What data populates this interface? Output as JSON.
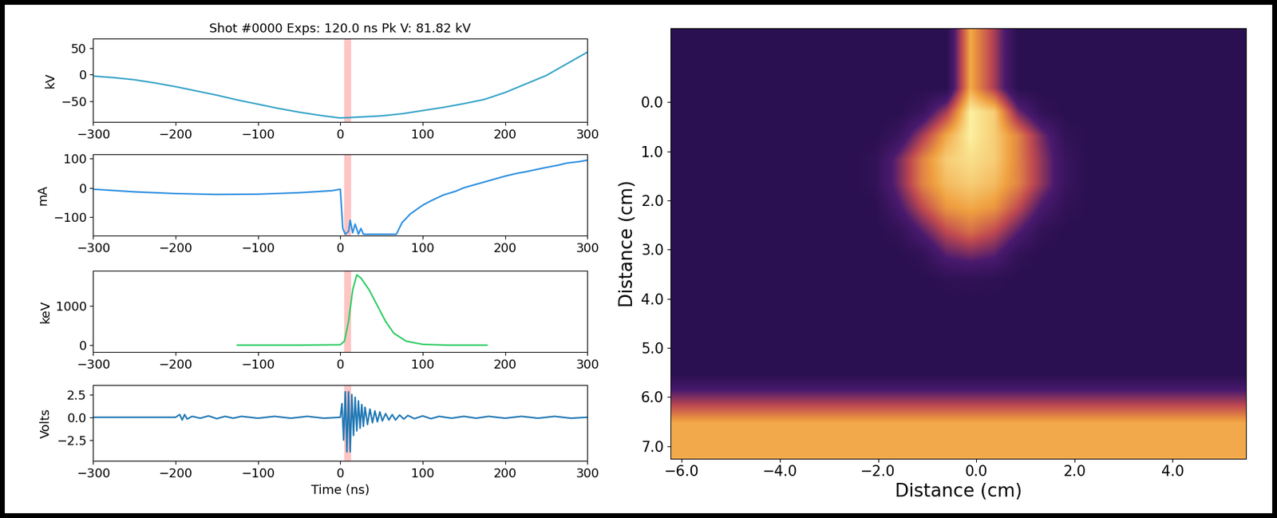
{
  "chart_data": [
    {
      "type": "line",
      "title": "Shot #0000 Exps: 120.0 ns Pk V: 81.82 kV",
      "y_label": "kV",
      "xlim": [
        -300,
        300
      ],
      "xticks": [
        {
          "value": -300,
          "label": "−300"
        },
        {
          "value": -200,
          "label": "−200"
        },
        {
          "value": -100,
          "label": "−100"
        },
        0,
        100,
        200,
        300
      ],
      "ylim": [
        -90,
        68
      ],
      "yticks": [
        {
          "value": -50,
          "label": "−50"
        },
        0,
        50
      ],
      "highlight": [
        5,
        13
      ],
      "series": [
        {
          "color": "#37a3c8",
          "x": [
            -300,
            -275,
            -250,
            -225,
            -200,
            -175,
            -150,
            -125,
            -100,
            -75,
            -50,
            -25,
            0,
            25,
            50,
            75,
            100,
            125,
            150,
            175,
            200,
            225,
            250,
            275,
            300
          ],
          "values": [
            -3,
            -6,
            -10,
            -16,
            -23,
            -31,
            -39,
            -48,
            -56,
            -64,
            -71,
            -77,
            -82,
            -80,
            -78,
            -74,
            -68,
            -62,
            -55,
            -47,
            -34,
            -18,
            -2,
            20,
            42
          ]
        }
      ]
    },
    {
      "type": "line",
      "y_label": "mA",
      "xlim": [
        -300,
        300
      ],
      "xticks": [
        {
          "value": -300,
          "label": "−300"
        },
        {
          "value": -200,
          "label": "−200"
        },
        {
          "value": -100,
          "label": "−100"
        },
        0,
        100,
        200,
        300
      ],
      "ylim": [
        -165,
        115
      ],
      "yticks": [
        {
          "value": -100,
          "label": "−100"
        },
        0,
        100
      ],
      "highlight": [
        5,
        13
      ],
      "series": [
        {
          "color": "#2b8ee0",
          "x": [
            -300,
            -250,
            -200,
            -150,
            -100,
            -50,
            -10,
            0,
            3,
            6,
            10,
            12,
            15,
            18,
            22,
            25,
            28,
            30,
            68,
            75,
            85,
            100,
            110,
            125,
            140,
            150,
            165,
            175,
            190,
            200,
            215,
            225,
            240,
            250,
            265,
            275,
            290,
            300
          ],
          "values": [
            -5,
            -14,
            -20,
            -23,
            -22,
            -17,
            -10,
            -5,
            -140,
            -160,
            -150,
            -112,
            -155,
            -125,
            -160,
            -140,
            -160,
            -160,
            -160,
            -120,
            -90,
            -60,
            -45,
            -25,
            -12,
            0,
            12,
            20,
            32,
            40,
            50,
            55,
            64,
            70,
            78,
            85,
            90,
            95
          ]
        }
      ]
    },
    {
      "type": "line",
      "y_label": "keV",
      "xlim": [
        -300,
        300
      ],
      "xticks": [
        {
          "value": -300,
          "label": "−300"
        },
        {
          "value": -200,
          "label": "−200"
        },
        {
          "value": -100,
          "label": "−100"
        },
        0,
        100,
        200,
        300
      ],
      "ylim": [
        -180,
        1880
      ],
      "yticks": [
        0,
        1000
      ],
      "highlight": [
        5,
        13
      ],
      "series": [
        {
          "color": "#2ecc62",
          "x": [
            -125,
            -50,
            0,
            5,
            10,
            15,
            20,
            25,
            35,
            45,
            55,
            65,
            80,
            100,
            130,
            178
          ],
          "values": [
            0,
            0,
            10,
            100,
            600,
            1400,
            1780,
            1700,
            1400,
            1000,
            600,
            300,
            100,
            20,
            0,
            0
          ]
        }
      ]
    },
    {
      "type": "line",
      "y_label": "Volts",
      "x_label": "Time (ns)",
      "xlim": [
        -300,
        300
      ],
      "xticks": [
        {
          "value": -300,
          "label": "−300"
        },
        {
          "value": -200,
          "label": "−200"
        },
        {
          "value": -100,
          "label": "−100"
        },
        0,
        100,
        200,
        300
      ],
      "ylim": [
        -4.8,
        3.5
      ],
      "yticks": [
        {
          "value": -2.5,
          "label": "−2.5"
        },
        {
          "value": 0,
          "label": "0.0"
        },
        2.5
      ],
      "highlight": [
        5,
        13
      ],
      "series": [
        {
          "color": "#1f77b4",
          "x": [
            -300,
            -200,
            -195,
            -192,
            -189,
            -186,
            -180,
            -170,
            -160,
            -150,
            -140,
            -130,
            -120,
            -100,
            -80,
            -60,
            -40,
            -20,
            0,
            2,
            4,
            6,
            8,
            10,
            12,
            14,
            16,
            18,
            20,
            22,
            24,
            26,
            28,
            30,
            33,
            36,
            39,
            42,
            45,
            48,
            51,
            55,
            59,
            63,
            67,
            72,
            77,
            82,
            90,
            100,
            110,
            120,
            135,
            150,
            165,
            180,
            200,
            220,
            240,
            260,
            280,
            300
          ],
          "values": [
            0,
            0,
            0.3,
            -0.3,
            0.3,
            -0.2,
            0.1,
            -0.1,
            0.15,
            -0.15,
            0.1,
            -0.1,
            0.1,
            -0.1,
            0.1,
            -0.1,
            0.1,
            -0.1,
            0,
            1.5,
            -2.5,
            2.8,
            -3.8,
            2.8,
            -3.8,
            2.5,
            -2.0,
            2.2,
            -1.5,
            1.8,
            -1.2,
            1.4,
            -1.0,
            1.1,
            -0.8,
            0.9,
            -0.6,
            0.7,
            -0.5,
            0.6,
            -0.4,
            0.4,
            -0.3,
            0.3,
            -0.3,
            0.25,
            -0.2,
            0.2,
            -0.15,
            0.15,
            -0.15,
            0.1,
            -0.1,
            0.1,
            -0.1,
            0.1,
            -0.1,
            0.1,
            -0.1,
            0.1,
            -0.1,
            0
          ]
        }
      ]
    },
    {
      "type": "heatmap",
      "x_label": "Distance (cm)",
      "y_label": "Distance (cm)",
      "xlim": [
        -6.23,
        5.5
      ],
      "ylim": [
        7.25,
        -1.5
      ],
      "xticks": [
        {
          "value": -6,
          "label": "−6.0"
        },
        {
          "value": -4,
          "label": "−4.0"
        },
        {
          "value": -2,
          "label": "−2.0"
        },
        {
          "value": 0,
          "label": "0.0"
        },
        {
          "value": 2,
          "label": "2.0"
        },
        {
          "value": 4,
          "label": "4.0"
        }
      ],
      "yticks": [
        {
          "value": 0,
          "label": "0.0"
        },
        {
          "value": 1,
          "label": "1.0"
        },
        {
          "value": 2,
          "label": "2.0"
        },
        {
          "value": 3,
          "label": "3.0"
        },
        {
          "value": 4,
          "label": "4.0"
        },
        {
          "value": 5,
          "label": "5.0"
        },
        {
          "value": 6,
          "label": "6.0"
        },
        {
          "value": 7,
          "label": "7.0"
        }
      ],
      "cells": [
        [
          0,
          0,
          0,
          0,
          0,
          0,
          0,
          0,
          0,
          0,
          0,
          0,
          7,
          4,
          0,
          0,
          0,
          0,
          0,
          0,
          0,
          0,
          0,
          0
        ],
        [
          0,
          0,
          0,
          0,
          0,
          0,
          0,
          0,
          0,
          0,
          0,
          0,
          7,
          4,
          0,
          0,
          0,
          0,
          0,
          0,
          0,
          0,
          0,
          0
        ],
        [
          0,
          0,
          0,
          0,
          0,
          0,
          0,
          0,
          0,
          0,
          0,
          0,
          7,
          4,
          0,
          0,
          0,
          0,
          0,
          0,
          0,
          0,
          0,
          0
        ],
        [
          0,
          0,
          0,
          0,
          0,
          0,
          0,
          0,
          0,
          0,
          1,
          4,
          9,
          8,
          3,
          0.5,
          0,
          0,
          0,
          0,
          0,
          0,
          0,
          0
        ],
        [
          0,
          0,
          0,
          0,
          0,
          0,
          0,
          0,
          0,
          1,
          4,
          7,
          9,
          8,
          6,
          3,
          0.5,
          0,
          0,
          0,
          0,
          0,
          0,
          0
        ],
        [
          0,
          0,
          0,
          0,
          0,
          0,
          0,
          0,
          0.5,
          3,
          6,
          8,
          8.5,
          8,
          6,
          3.5,
          1,
          0,
          0,
          0,
          0,
          0,
          0,
          0
        ],
        [
          0,
          0,
          0,
          0,
          0,
          0,
          0,
          0,
          0.5,
          3,
          6,
          7.5,
          8,
          7.5,
          6,
          3.5,
          1,
          0,
          0,
          0,
          0,
          0,
          0,
          0
        ],
        [
          0,
          0,
          0,
          0,
          0,
          0,
          0,
          0,
          0,
          2,
          4.5,
          6.5,
          7,
          6.5,
          4.5,
          2,
          0.5,
          0,
          0,
          0,
          0,
          0,
          0,
          0
        ],
        [
          0,
          0,
          0,
          0,
          0,
          0,
          0,
          0,
          0,
          0.5,
          2.5,
          4.5,
          5.5,
          4.5,
          2.5,
          0.5,
          0,
          0,
          0,
          0,
          0,
          0,
          0,
          0
        ],
        [
          0,
          0,
          0,
          0,
          0,
          0,
          0,
          0,
          0,
          0,
          0.5,
          2.5,
          3,
          2.5,
          0.5,
          0,
          0,
          0,
          0,
          0,
          0,
          0,
          0,
          0
        ],
        [
          0,
          0,
          0,
          0,
          0,
          0,
          0,
          0,
          0,
          0,
          0,
          0.3,
          0.5,
          0.3,
          0,
          0,
          0,
          0,
          0,
          0,
          0,
          0,
          0,
          0
        ],
        [
          0,
          0,
          0,
          0,
          0,
          0,
          0,
          0,
          0,
          0,
          0,
          0,
          0,
          0,
          0,
          0,
          0,
          0,
          0,
          0,
          0,
          0,
          0,
          0
        ],
        [
          0,
          0,
          0,
          0,
          0,
          0,
          0,
          0,
          0,
          0,
          0,
          0,
          0,
          0,
          0,
          0,
          0,
          0,
          0,
          0,
          0,
          0,
          0,
          0
        ],
        [
          0,
          0,
          0,
          0,
          0,
          0,
          0,
          0,
          0,
          0,
          0,
          0,
          0,
          0,
          0,
          0,
          0,
          0,
          0,
          0,
          0,
          0,
          0,
          0
        ],
        [
          0,
          0,
          0,
          0,
          0,
          0,
          0,
          0,
          0,
          0,
          0,
          0,
          0,
          0,
          0,
          0,
          0,
          0,
          0,
          0,
          0,
          0,
          0,
          0
        ],
        [
          3.5,
          3.5,
          3.5,
          3.5,
          3.5,
          3.5,
          3.5,
          3.5,
          3.5,
          3.5,
          3.5,
          3.5,
          3.5,
          3.5,
          3.5,
          3.5,
          3.5,
          3.5,
          3.5,
          3.5,
          3.5,
          3.5,
          3.5,
          3.5
        ],
        [
          7,
          7,
          7,
          7,
          7,
          7,
          7,
          7,
          7,
          7,
          7,
          7,
          7,
          7,
          7,
          7,
          7,
          7,
          7,
          7,
          7,
          7,
          7,
          7
        ],
        [
          7,
          7,
          7,
          7,
          7,
          7,
          7,
          7,
          7,
          7,
          7,
          7,
          7,
          7,
          7,
          7,
          7,
          7,
          7,
          7,
          7,
          7,
          7,
          7
        ]
      ]
    }
  ]
}
